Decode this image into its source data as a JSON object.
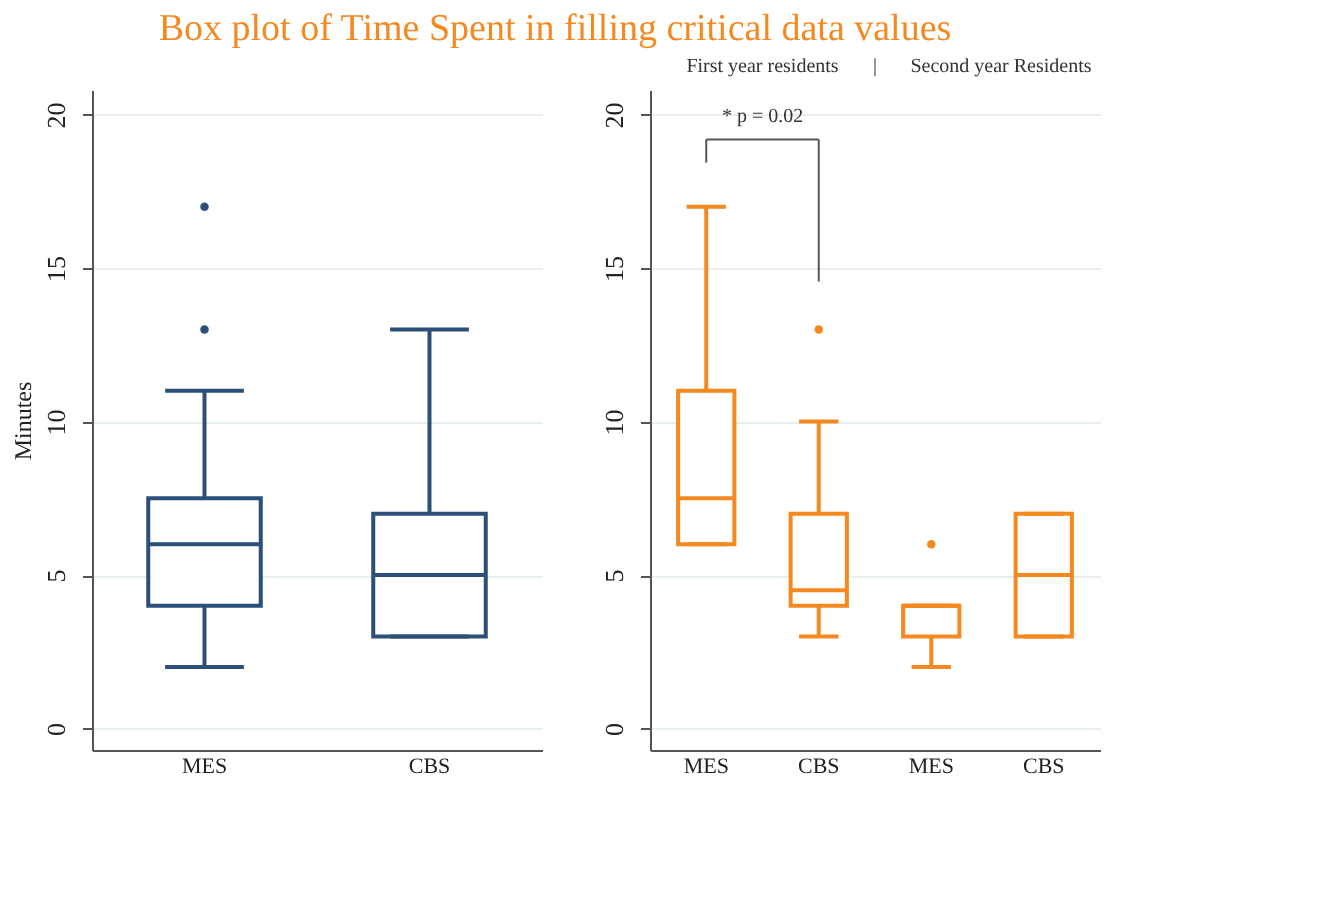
{
  "chart_data": [
    {
      "type": "box",
      "title": "Box plot of Time Spent in filling critical data values",
      "ylabel": "Minutes",
      "categories": [
        "MES",
        "CBS"
      ],
      "ylim": [
        -0.7,
        20.8
      ],
      "yticks": [
        0,
        5,
        10,
        15,
        20
      ],
      "grid": "y",
      "series": [
        {
          "color": "#2b4f78",
          "boxes": [
            {
              "low": 2,
              "q1": 4,
              "median": 6,
              "q3": 7.5,
              "high": 11,
              "outliers": [
                13,
                17
              ]
            },
            {
              "low": 3,
              "q1": 3,
              "median": 5,
              "q3": 7,
              "high": 13
            }
          ]
        }
      ]
    },
    {
      "type": "box",
      "categories": [
        "MES",
        "CBS",
        "MES",
        "CBS"
      ],
      "ylim": [
        -0.7,
        20.8
      ],
      "yticks": [
        0,
        5,
        10,
        15,
        20
      ],
      "grid": "y",
      "annotations": [
        "First year residents",
        "|",
        "Second year Residents",
        "* p = 0.02"
      ],
      "series": [
        {
          "color": "#f5891f",
          "boxes": [
            {
              "low": 6,
              "q1": 6,
              "median": 7.5,
              "q3": 11,
              "high": 17
            },
            {
              "low": 3,
              "q1": 4,
              "median": 4.5,
              "q3": 7,
              "high": 10,
              "outliers": [
                13
              ]
            },
            {
              "low": 2,
              "q1": 3,
              "median": 4,
              "q3": 4,
              "high": 4,
              "outliers": [
                6
              ]
            },
            {
              "low": 3,
              "q1": 3,
              "median": 5,
              "q3": 7,
              "high": 7
            }
          ]
        }
      ]
    }
  ]
}
